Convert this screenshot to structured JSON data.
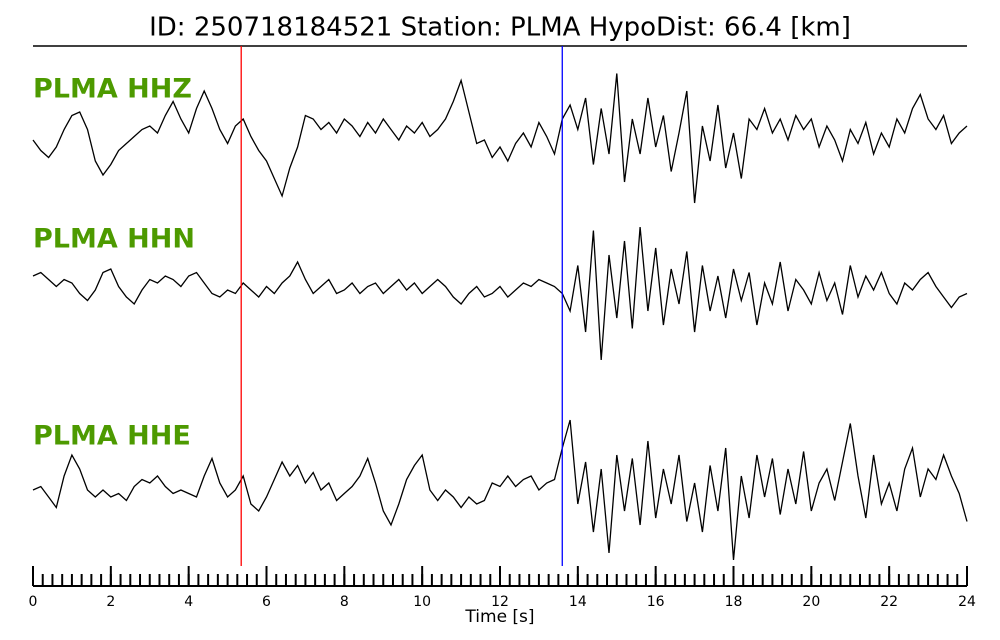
{
  "chart_data": {
    "type": "line",
    "title": "ID: 250718184521   Station: PLMA   HypoDist:    66.4 [km]",
    "xlabel": "Time [s]",
    "xlim": [
      0,
      24
    ],
    "xticks": [
      0,
      2,
      4,
      6,
      8,
      10,
      12,
      14,
      16,
      18,
      20,
      22,
      24
    ],
    "xminorticks": [
      0,
      0.25,
      0.5,
      0.75,
      1,
      1.25,
      1.5,
      1.75,
      2,
      2.25,
      2.5,
      2.75,
      3,
      3.25,
      3.5,
      3.75,
      4,
      4.25,
      4.5,
      4.75,
      5,
      5.25,
      5.5,
      5.75,
      6,
      6.25,
      6.5,
      6.75,
      7,
      7.25,
      7.5,
      7.75,
      8,
      8.25,
      8.5,
      8.75,
      9,
      9.25,
      9.5,
      9.75,
      10,
      10.25,
      10.5,
      10.75,
      11,
      11.25,
      11.5,
      11.75,
      12,
      12.25,
      12.5,
      12.75,
      13,
      13.25,
      13.5,
      13.75,
      14,
      14.25,
      14.5,
      14.75,
      15,
      15.25,
      15.5,
      15.75,
      16,
      16.25,
      16.5,
      16.75,
      17,
      17.25,
      17.5,
      17.75,
      18,
      18.25,
      18.5,
      18.75,
      19,
      19.25,
      19.5,
      19.75,
      20,
      20.25,
      20.5,
      20.75,
      21,
      21.25,
      21.5,
      21.75,
      22,
      22.25,
      22.5,
      22.75,
      23,
      23.25,
      23.5,
      23.75,
      24
    ],
    "ylim": [
      -1,
      1
    ],
    "label_color": "#4d9a00",
    "picks": [
      {
        "color": "#ff0000",
        "x": 5.35
      },
      {
        "color": "#0000ff",
        "x": 13.6
      }
    ],
    "x": [
      0,
      0.2,
      0.4,
      0.6,
      0.8,
      1,
      1.2,
      1.4,
      1.6,
      1.8,
      2,
      2.2,
      2.4,
      2.6,
      2.8,
      3,
      3.2,
      3.4,
      3.6,
      3.8,
      4,
      4.2,
      4.4,
      4.6,
      4.8,
      5,
      5.2,
      5.4,
      5.6,
      5.8,
      6,
      6.2,
      6.4,
      6.6,
      6.8,
      7,
      7.2,
      7.4,
      7.6,
      7.8,
      8,
      8.2,
      8.4,
      8.6,
      8.8,
      9,
      9.2,
      9.4,
      9.6,
      9.8,
      10,
      10.2,
      10.4,
      10.6,
      10.8,
      11,
      11.2,
      11.4,
      11.6,
      11.8,
      12,
      12.2,
      12.4,
      12.6,
      12.8,
      13,
      13.2,
      13.4,
      13.6,
      13.8,
      14,
      14.2,
      14.4,
      14.6,
      14.8,
      15,
      15.2,
      15.4,
      15.6,
      15.8,
      16,
      16.2,
      16.4,
      16.6,
      16.8,
      17,
      17.2,
      17.4,
      17.6,
      17.8,
      18,
      18.2,
      18.4,
      18.6,
      18.8,
      19,
      19.2,
      19.4,
      19.6,
      19.8,
      20,
      20.2,
      20.4,
      20.6,
      20.8,
      21,
      21.2,
      21.4,
      21.6,
      21.8,
      22,
      22.2,
      22.4,
      22.6,
      22.8,
      23,
      23.2,
      23.4,
      23.6,
      23.8,
      24
    ],
    "series": [
      {
        "name": "PLMA HHZ",
        "color": "#000000",
        "values": [
          0,
          -0.15,
          -0.25,
          -0.1,
          0.15,
          0.35,
          0.4,
          0.15,
          -0.3,
          -0.5,
          -0.35,
          -0.15,
          -0.05,
          0.05,
          0.15,
          0.2,
          0.1,
          0.35,
          0.55,
          0.3,
          0.1,
          0.45,
          0.7,
          0.45,
          0.15,
          -0.05,
          0.2,
          0.3,
          0.05,
          -0.15,
          -0.3,
          -0.55,
          -0.8,
          -0.4,
          -0.1,
          0.35,
          0.3,
          0.15,
          0.25,
          0.1,
          0.3,
          0.2,
          0.05,
          0.25,
          0.1,
          0.3,
          0.15,
          0,
          0.2,
          0.1,
          0.25,
          0.05,
          0.15,
          0.3,
          0.55,
          0.85,
          0.4,
          -0.05,
          0,
          -0.25,
          -0.1,
          -0.3,
          -0.05,
          0.1,
          -0.1,
          0.25,
          0.05,
          -0.2,
          0.3,
          0.5,
          0.15,
          0.6,
          -0.35,
          0.45,
          -0.2,
          0.95,
          -0.6,
          0.3,
          -0.2,
          0.6,
          -0.1,
          0.35,
          -0.45,
          0.1,
          0.7,
          -0.9,
          0.2,
          -0.3,
          0.5,
          -0.4,
          0.1,
          -0.55,
          0.3,
          0.15,
          0.45,
          0.1,
          0.3,
          0,
          0.35,
          0.15,
          0.3,
          -0.1,
          0.2,
          0,
          -0.3,
          0.15,
          -0.05,
          0.25,
          -0.2,
          0.1,
          -0.1,
          0.3,
          0.1,
          0.45,
          0.65,
          0.3,
          0.15,
          0.35,
          -0.05,
          0.1,
          0.2
        ]
      },
      {
        "name": "PLMA HHN",
        "color": "#000000",
        "values": [
          0.2,
          0.25,
          0.15,
          0.05,
          0.15,
          0.1,
          -0.05,
          -0.15,
          0,
          0.25,
          0.3,
          0.05,
          -0.1,
          -0.2,
          0,
          0.15,
          0.1,
          0.2,
          0.15,
          0.05,
          0.2,
          0.25,
          0.1,
          -0.05,
          -0.1,
          0,
          -0.05,
          0.1,
          0,
          -0.1,
          0.05,
          -0.05,
          0.1,
          0.2,
          0.4,
          0.15,
          -0.05,
          0.05,
          0.15,
          -0.05,
          0,
          0.1,
          -0.05,
          0.05,
          0.1,
          -0.05,
          0.05,
          0.15,
          0,
          0.1,
          -0.05,
          0.05,
          0.15,
          0.05,
          -0.1,
          -0.2,
          -0.05,
          0.05,
          -0.1,
          -0.05,
          0.05,
          -0.1,
          0,
          0.1,
          0.05,
          0.15,
          0.1,
          0.05,
          -0.05,
          -0.3,
          0.35,
          -0.6,
          0.85,
          -1,
          0.5,
          -0.4,
          0.7,
          -0.55,
          0.9,
          -0.3,
          0.6,
          -0.5,
          0.3,
          -0.2,
          0.55,
          -0.6,
          0.35,
          -0.3,
          0.2,
          -0.4,
          0.3,
          -0.15,
          0.25,
          -0.5,
          0.1,
          -0.2,
          0.4,
          -0.3,
          0.15,
          0,
          -0.2,
          0.25,
          -0.15,
          0.1,
          -0.35,
          0.35,
          -0.1,
          0.2,
          0,
          0.25,
          -0.05,
          -0.2,
          0.1,
          0,
          0.15,
          0.25,
          0.05,
          -0.1,
          -0.25,
          -0.1,
          -0.05
        ]
      },
      {
        "name": "PLMA HHE",
        "color": "#000000",
        "values": [
          0,
          0.05,
          -0.1,
          -0.25,
          0.2,
          0.5,
          0.3,
          0,
          -0.1,
          0,
          -0.1,
          -0.05,
          -0.15,
          0.05,
          0.15,
          0.1,
          0.2,
          0.05,
          -0.05,
          0,
          -0.05,
          -0.1,
          0.2,
          0.45,
          0.1,
          -0.1,
          0,
          0.2,
          -0.2,
          -0.3,
          -0.1,
          0.15,
          0.4,
          0.2,
          0.35,
          0.1,
          0.25,
          0,
          0.1,
          -0.15,
          -0.05,
          0.05,
          0.2,
          0.45,
          0.1,
          -0.3,
          -0.5,
          -0.2,
          0.15,
          0.35,
          0.5,
          0,
          -0.15,
          0,
          -0.1,
          -0.25,
          -0.1,
          -0.2,
          -0.15,
          0.1,
          0.05,
          0.2,
          0.05,
          0.15,
          0.2,
          0,
          0.1,
          0.15,
          0.6,
          1,
          -0.2,
          0.4,
          -0.6,
          0.3,
          -0.9,
          0.5,
          -0.3,
          0.45,
          -0.5,
          0.7,
          -0.4,
          0.3,
          -0.2,
          0.5,
          -0.45,
          0.1,
          -0.6,
          0.35,
          -0.3,
          0.6,
          -1,
          0.2,
          -0.4,
          0.5,
          -0.1,
          0.45,
          -0.35,
          0.3,
          -0.2,
          0.55,
          -0.3,
          0.1,
          0.3,
          -0.15,
          0.4,
          0.95,
          0.2,
          -0.4,
          0.5,
          -0.2,
          0.1,
          -0.3,
          0.3,
          0.6,
          -0.1,
          0.3,
          0.15,
          0.5,
          0.2,
          -0.05,
          -0.45
        ]
      }
    ]
  }
}
